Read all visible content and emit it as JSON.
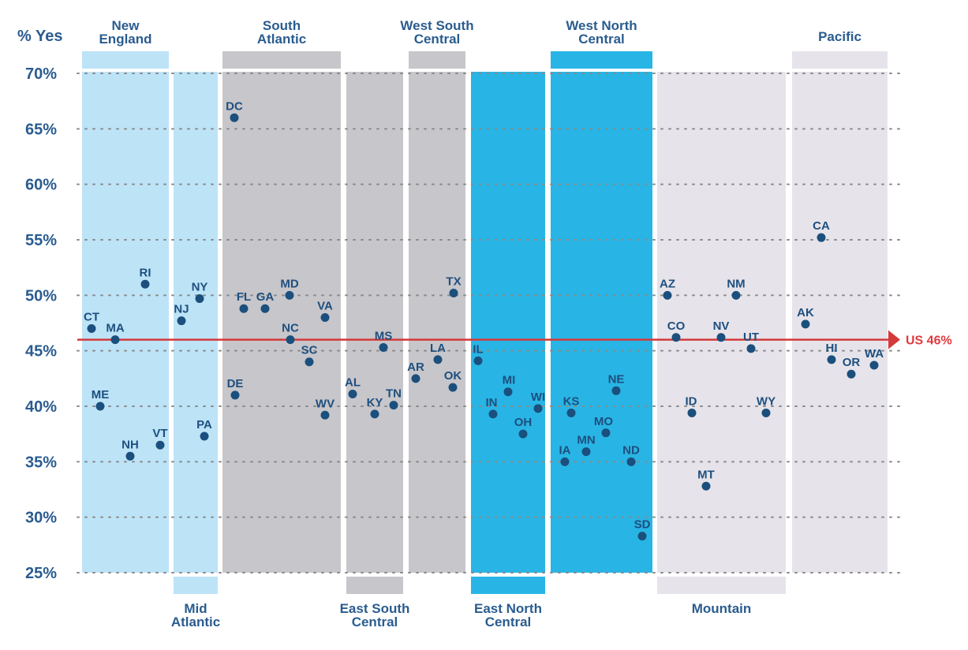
{
  "chart_data": {
    "type": "scatter",
    "ylabel": "% Yes",
    "ylim": [
      25,
      70
    ],
    "yticks": [
      25,
      30,
      35,
      40,
      45,
      50,
      55,
      60,
      65,
      70
    ],
    "ytick_labels": [
      "25%",
      "30%",
      "35%",
      "40%",
      "45%",
      "50%",
      "55%",
      "60%",
      "65%",
      "70%"
    ],
    "grid": true,
    "reference_line": {
      "label": "US 46%",
      "value": 46,
      "color": "#d43a3a"
    },
    "regions": [
      {
        "name": "New England",
        "label_lines": [
          "New",
          "England"
        ],
        "label_pos": "top",
        "color": "#bde3f7",
        "points": [
          {
            "state": "CT",
            "value": 47
          },
          {
            "state": "MA",
            "value": 46
          },
          {
            "state": "ME",
            "value": 40
          },
          {
            "state": "NH",
            "value": 35.5
          },
          {
            "state": "RI",
            "value": 51
          },
          {
            "state": "VT",
            "value": 36.5
          }
        ]
      },
      {
        "name": "Mid Atlantic",
        "label_lines": [
          "Mid",
          "Atlantic"
        ],
        "label_pos": "bottom",
        "color": "#bde3f7",
        "points": [
          {
            "state": "NJ",
            "value": 47.7
          },
          {
            "state": "NY",
            "value": 49.7
          },
          {
            "state": "PA",
            "value": 37.3
          }
        ]
      },
      {
        "name": "South Atlantic",
        "label_lines": [
          "South",
          "Atlantic"
        ],
        "label_pos": "top",
        "color": "#c7c6ca",
        "points": [
          {
            "state": "DC",
            "value": 66
          },
          {
            "state": "DE",
            "value": 41
          },
          {
            "state": "FL",
            "value": 48.8
          },
          {
            "state": "GA",
            "value": 48.8
          },
          {
            "state": "MD",
            "value": 50
          },
          {
            "state": "NC",
            "value": 46
          },
          {
            "state": "SC",
            "value": 44
          },
          {
            "state": "VA",
            "value": 48
          },
          {
            "state": "WV",
            "value": 39.2
          }
        ]
      },
      {
        "name": "East South Central",
        "label_lines": [
          "East South",
          "Central"
        ],
        "label_pos": "bottom",
        "color": "#c7c6ca",
        "points": [
          {
            "state": "AL",
            "value": 41.1
          },
          {
            "state": "KY",
            "value": 39.3
          },
          {
            "state": "MS",
            "value": 45.3
          },
          {
            "state": "TN",
            "value": 40.1
          }
        ]
      },
      {
        "name": "West South Central",
        "label_lines": [
          "West South",
          "Central"
        ],
        "label_pos": "top",
        "color": "#c7c6ca",
        "points": [
          {
            "state": "AR",
            "value": 42.5
          },
          {
            "state": "LA",
            "value": 44.2
          },
          {
            "state": "OK",
            "value": 41.7
          },
          {
            "state": "TX",
            "value": 50.2
          }
        ]
      },
      {
        "name": "East North Central",
        "label_lines": [
          "East North",
          "Central"
        ],
        "label_pos": "bottom",
        "color": "#28b5e5",
        "points": [
          {
            "state": "IL",
            "value": 44.1
          },
          {
            "state": "IN",
            "value": 39.3
          },
          {
            "state": "MI",
            "value": 41.3
          },
          {
            "state": "OH",
            "value": 37.5
          },
          {
            "state": "WI",
            "value": 39.8
          }
        ]
      },
      {
        "name": "West North Central",
        "label_lines": [
          "West North",
          "Central"
        ],
        "label_pos": "top",
        "color": "#28b5e5",
        "points": [
          {
            "state": "IA",
            "value": 35
          },
          {
            "state": "KS",
            "value": 39.4
          },
          {
            "state": "MN",
            "value": 35.9
          },
          {
            "state": "MO",
            "value": 37.6
          },
          {
            "state": "ND",
            "value": 35
          },
          {
            "state": "NE",
            "value": 41.4
          },
          {
            "state": "SD",
            "value": 28.3
          }
        ]
      },
      {
        "name": "Mountain",
        "label_lines": [
          "Mountain"
        ],
        "label_pos": "bottom",
        "color": "#e6e4ea",
        "points": [
          {
            "state": "AZ",
            "value": 50
          },
          {
            "state": "CO",
            "value": 46.2
          },
          {
            "state": "ID",
            "value": 39.4
          },
          {
            "state": "MT",
            "value": 32.8
          },
          {
            "state": "NM",
            "value": 50
          },
          {
            "state": "NV",
            "value": 46.2
          },
          {
            "state": "UT",
            "value": 45.2
          },
          {
            "state": "WY",
            "value": 39.4
          }
        ]
      },
      {
        "name": "Pacific",
        "label_lines": [
          "Pacific"
        ],
        "label_pos": "top",
        "color": "#e6e4ea",
        "points": [
          {
            "state": "AK",
            "value": 47.4
          },
          {
            "state": "CA",
            "value": 55.2
          },
          {
            "state": "HI",
            "value": 44.2
          },
          {
            "state": "OR",
            "value": 42.9
          },
          {
            "state": "WA",
            "value": 43.7
          }
        ]
      }
    ]
  }
}
